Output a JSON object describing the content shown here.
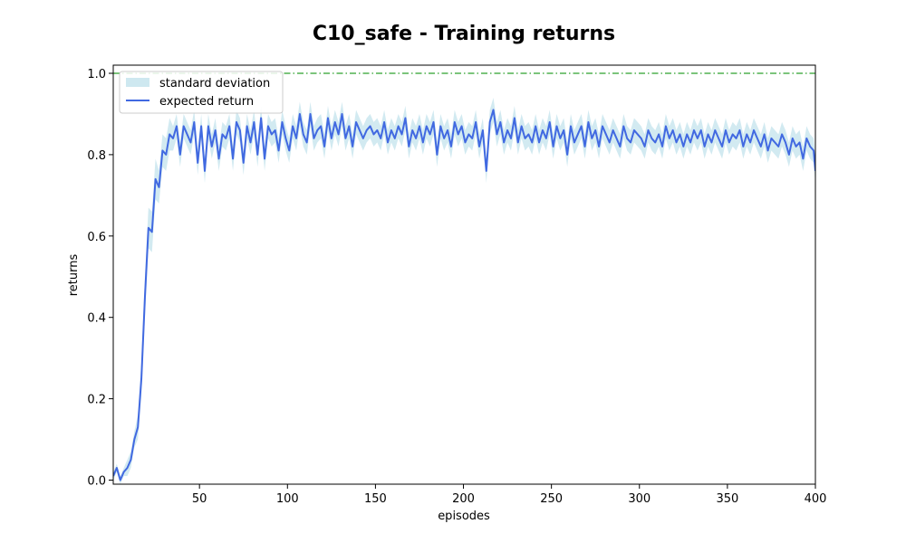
{
  "chart_data": {
    "type": "line",
    "title": "C10_safe - Training returns",
    "xlabel": "episodes",
    "ylabel": "returns",
    "xlim": [
      1,
      400
    ],
    "ylim": [
      -0.01,
      1.02
    ],
    "x_ticks": [
      50,
      100,
      150,
      200,
      250,
      300,
      350,
      400
    ],
    "y_ticks": [
      0.0,
      0.2,
      0.4,
      0.6,
      0.8,
      1.0
    ],
    "x_tick_labels": [
      "50",
      "100",
      "150",
      "200",
      "250",
      "300",
      "350",
      "400"
    ],
    "y_tick_labels": [
      "0.0",
      "0.2",
      "0.4",
      "0.6",
      "0.8",
      "1.0"
    ],
    "grid": false,
    "legend_position": "upper-left",
    "legend": [
      "standard deviation",
      "expected return"
    ],
    "reference_line": {
      "y": 1.0,
      "color": "#2ca02c",
      "style": "dash-dot"
    },
    "colors": {
      "mean": "#4169e1",
      "band": "#add8e6"
    },
    "series": [
      {
        "name": "expected return",
        "x": [
          1,
          3,
          5,
          7,
          9,
          11,
          13,
          15,
          17,
          19,
          21,
          23,
          25,
          27,
          29,
          31,
          33,
          35,
          37,
          39,
          41,
          43,
          45,
          47,
          49,
          51,
          53,
          55,
          57,
          59,
          61,
          63,
          65,
          67,
          69,
          71,
          73,
          75,
          77,
          79,
          81,
          83,
          85,
          87,
          89,
          91,
          93,
          95,
          97,
          99,
          101,
          103,
          105,
          107,
          109,
          111,
          113,
          115,
          117,
          119,
          121,
          123,
          125,
          127,
          129,
          131,
          133,
          135,
          137,
          139,
          141,
          143,
          145,
          147,
          149,
          151,
          153,
          155,
          157,
          159,
          161,
          163,
          165,
          167,
          169,
          171,
          173,
          175,
          177,
          179,
          181,
          183,
          185,
          187,
          189,
          191,
          193,
          195,
          197,
          199,
          201,
          203,
          205,
          207,
          209,
          211,
          213,
          215,
          217,
          219,
          221,
          223,
          225,
          227,
          229,
          231,
          233,
          235,
          237,
          239,
          241,
          243,
          245,
          247,
          249,
          251,
          253,
          255,
          257,
          259,
          261,
          263,
          265,
          267,
          269,
          271,
          273,
          275,
          277,
          279,
          281,
          283,
          285,
          287,
          289,
          291,
          293,
          295,
          297,
          299,
          301,
          303,
          305,
          307,
          309,
          311,
          313,
          315,
          317,
          319,
          321,
          323,
          325,
          327,
          329,
          331,
          333,
          335,
          337,
          339,
          341,
          343,
          345,
          347,
          349,
          351,
          353,
          355,
          357,
          359,
          361,
          363,
          365,
          367,
          369,
          371,
          373,
          375,
          377,
          379,
          381,
          383,
          385,
          387,
          389,
          391,
          393,
          395,
          397,
          399,
          400
        ],
        "y": [
          0.01,
          0.03,
          0.0,
          0.02,
          0.03,
          0.05,
          0.1,
          0.13,
          0.25,
          0.45,
          0.62,
          0.61,
          0.74,
          0.72,
          0.81,
          0.8,
          0.85,
          0.84,
          0.87,
          0.8,
          0.87,
          0.85,
          0.83,
          0.88,
          0.78,
          0.87,
          0.76,
          0.87,
          0.82,
          0.86,
          0.79,
          0.85,
          0.84,
          0.87,
          0.79,
          0.88,
          0.86,
          0.78,
          0.87,
          0.83,
          0.88,
          0.8,
          0.89,
          0.79,
          0.87,
          0.85,
          0.86,
          0.81,
          0.88,
          0.84,
          0.81,
          0.87,
          0.84,
          0.9,
          0.85,
          0.83,
          0.9,
          0.84,
          0.86,
          0.87,
          0.82,
          0.89,
          0.84,
          0.88,
          0.85,
          0.9,
          0.84,
          0.87,
          0.82,
          0.88,
          0.86,
          0.84,
          0.86,
          0.87,
          0.85,
          0.86,
          0.84,
          0.88,
          0.83,
          0.86,
          0.84,
          0.87,
          0.85,
          0.89,
          0.82,
          0.86,
          0.84,
          0.87,
          0.83,
          0.87,
          0.85,
          0.88,
          0.8,
          0.87,
          0.84,
          0.86,
          0.82,
          0.88,
          0.85,
          0.87,
          0.83,
          0.85,
          0.84,
          0.88,
          0.82,
          0.86,
          0.76,
          0.88,
          0.91,
          0.85,
          0.88,
          0.83,
          0.86,
          0.84,
          0.89,
          0.83,
          0.87,
          0.84,
          0.85,
          0.83,
          0.87,
          0.83,
          0.86,
          0.84,
          0.88,
          0.82,
          0.87,
          0.84,
          0.86,
          0.8,
          0.87,
          0.83,
          0.85,
          0.87,
          0.82,
          0.88,
          0.84,
          0.86,
          0.82,
          0.87,
          0.85,
          0.83,
          0.86,
          0.84,
          0.82,
          0.87,
          0.84,
          0.83,
          0.86,
          0.85,
          0.84,
          0.82,
          0.86,
          0.84,
          0.83,
          0.85,
          0.82,
          0.87,
          0.84,
          0.86,
          0.83,
          0.85,
          0.82,
          0.85,
          0.83,
          0.86,
          0.84,
          0.86,
          0.82,
          0.85,
          0.83,
          0.86,
          0.84,
          0.82,
          0.86,
          0.83,
          0.85,
          0.84,
          0.86,
          0.82,
          0.85,
          0.83,
          0.86,
          0.84,
          0.82,
          0.85,
          0.81,
          0.84,
          0.83,
          0.82,
          0.85,
          0.83,
          0.8,
          0.84,
          0.82,
          0.83,
          0.79,
          0.84,
          0.82,
          0.81,
          0.76
        ]
      }
    ],
    "band_halfwidth": [
      0.01,
      0.01,
      0.01,
      0.01,
      0.02,
      0.02,
      0.02,
      0.03,
      0.04,
      0.05,
      0.05,
      0.05,
      0.05,
      0.04,
      0.04,
      0.04,
      0.04,
      0.03,
      0.03,
      0.03,
      0.03,
      0.03,
      0.03,
      0.03,
      0.03,
      0.03,
      0.03,
      0.03,
      0.03,
      0.03,
      0.03,
      0.03,
      0.03,
      0.03,
      0.03,
      0.03,
      0.03,
      0.03,
      0.03,
      0.03,
      0.03,
      0.03,
      0.03,
      0.03,
      0.03,
      0.03,
      0.03,
      0.03,
      0.03,
      0.03,
      0.03,
      0.03,
      0.03,
      0.03,
      0.03,
      0.03,
      0.03,
      0.03,
      0.03,
      0.03,
      0.03,
      0.03,
      0.03,
      0.03,
      0.03,
      0.03,
      0.03,
      0.03,
      0.03,
      0.03,
      0.03,
      0.03,
      0.03,
      0.03,
      0.03,
      0.03,
      0.03,
      0.03,
      0.03,
      0.03,
      0.03,
      0.03,
      0.03,
      0.03,
      0.03,
      0.03,
      0.03,
      0.03,
      0.03,
      0.03,
      0.03,
      0.03,
      0.03,
      0.03,
      0.03,
      0.03,
      0.03,
      0.03,
      0.03,
      0.03,
      0.03,
      0.03,
      0.03,
      0.03,
      0.03,
      0.03,
      0.03,
      0.03,
      0.03,
      0.03,
      0.03,
      0.03,
      0.03,
      0.03,
      0.03,
      0.03,
      0.03,
      0.03,
      0.03,
      0.03,
      0.03,
      0.03,
      0.03,
      0.03,
      0.03,
      0.03,
      0.03,
      0.03,
      0.03,
      0.03,
      0.03,
      0.03,
      0.03,
      0.03,
      0.03,
      0.03,
      0.03,
      0.03,
      0.03,
      0.03,
      0.03,
      0.03,
      0.03,
      0.03,
      0.03,
      0.03,
      0.03,
      0.03,
      0.03,
      0.03,
      0.03,
      0.03,
      0.03,
      0.03,
      0.03,
      0.03,
      0.03,
      0.03,
      0.03,
      0.03,
      0.03,
      0.03,
      0.03,
      0.03,
      0.03,
      0.03,
      0.03,
      0.03,
      0.03,
      0.03,
      0.03,
      0.03,
      0.03,
      0.03,
      0.03,
      0.03,
      0.03,
      0.03,
      0.03,
      0.03,
      0.03,
      0.03,
      0.03,
      0.03,
      0.03,
      0.03,
      0.03,
      0.03,
      0.03,
      0.03,
      0.03,
      0.03,
      0.03,
      0.03,
      0.03,
      0.03,
      0.03,
      0.03,
      0.03,
      0.03,
      0.03
    ]
  }
}
